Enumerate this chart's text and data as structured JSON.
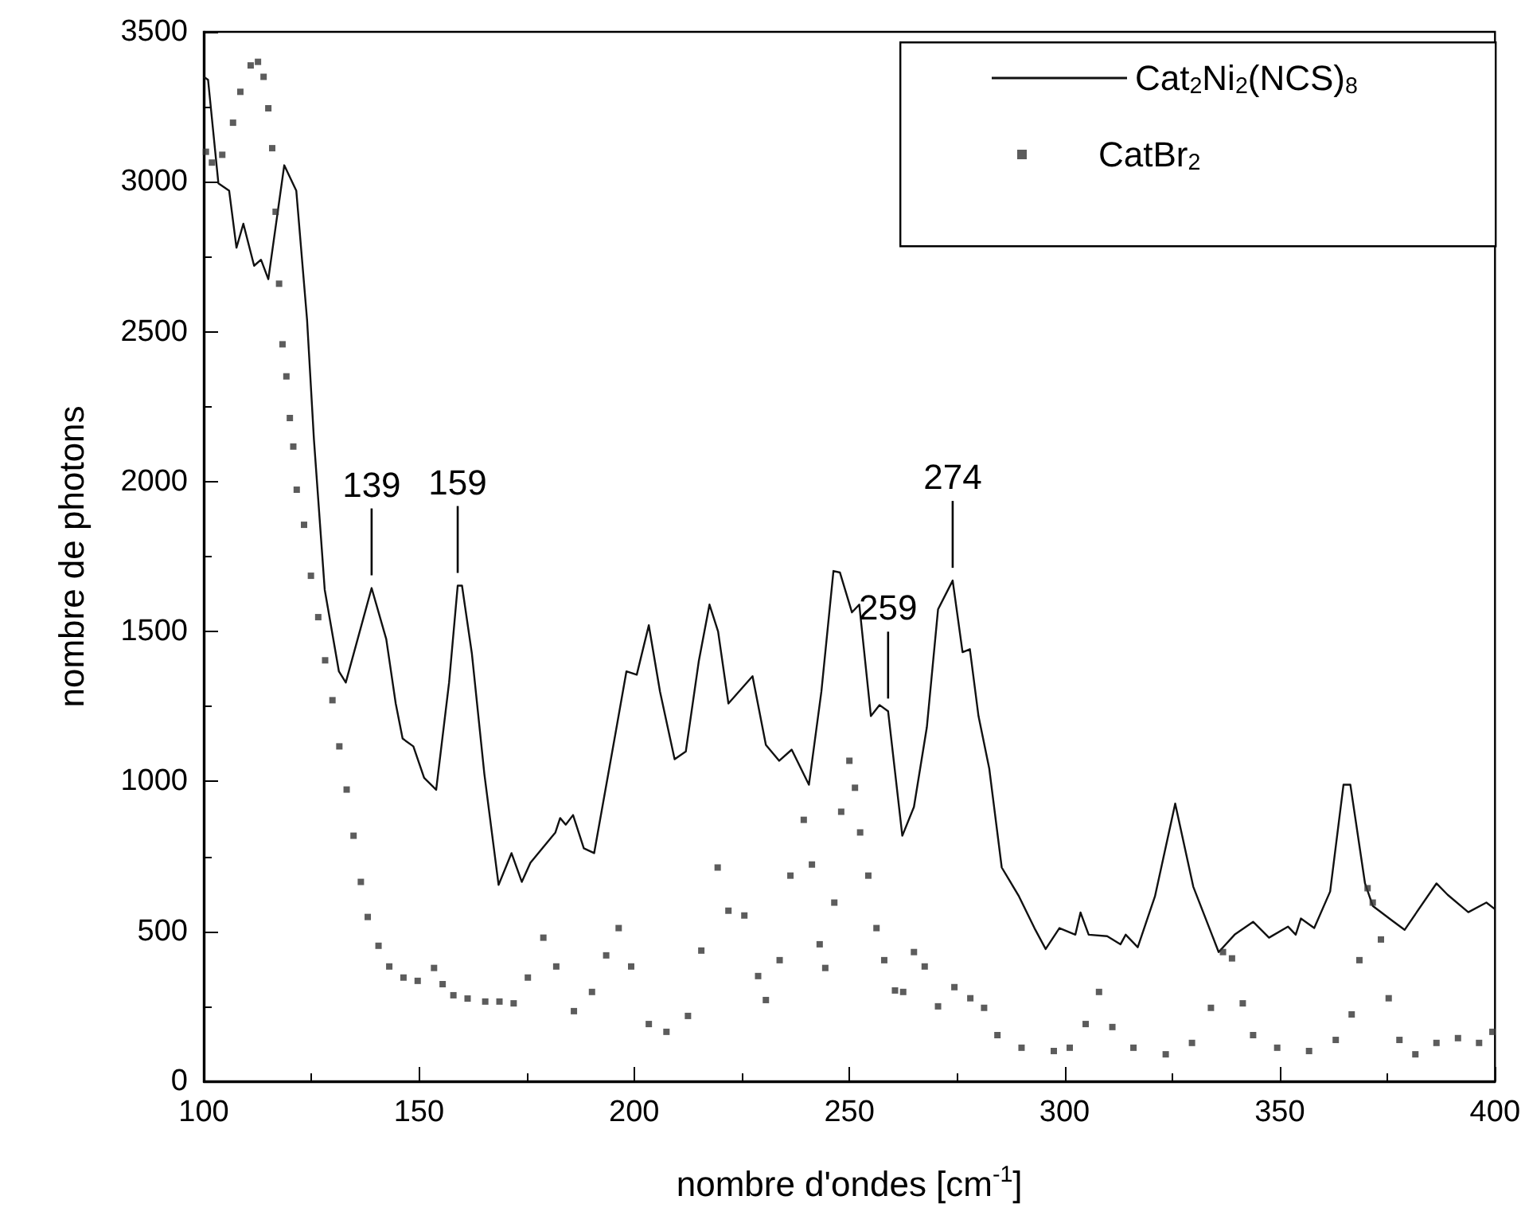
{
  "chart_data": {
    "type": "line",
    "xlabel": "nombre d'ondes [cm$^{-1}$]",
    "ylabel": "nombre de photons",
    "xlim": [
      100,
      400
    ],
    "xticks": [
      100,
      150,
      200,
      250,
      300,
      350,
      400
    ],
    "ylim": [
      0,
      3500
    ],
    "yticks": [
      0,
      500,
      1000,
      1500,
      2000,
      2500,
      3000,
      3500
    ],
    "grid": false,
    "legend": "top right",
    "annotations": [
      {
        "text": "139",
        "x": 139,
        "y": 1645
      },
      {
        "text": "159",
        "x": 159,
        "y": 1653
      },
      {
        "text": "259",
        "x": 259,
        "y": 1234
      },
      {
        "text": "274",
        "x": 274,
        "y": 1670
      }
    ],
    "series": [
      {
        "name": "Cat$_{2}$Ni$_{2}$(NCS)$_{8}$",
        "color": "#111111",
        "marker": "none",
        "line_style": "solid",
        "x": [
          100,
          101,
          103.4,
          105.9,
          107.6,
          109.2,
          111.7,
          113.3,
          115,
          118.7,
          121.5,
          124,
          125.6,
          128.1,
          131.4,
          133,
          139,
          142.4,
          144.6,
          146.2,
          148.7,
          151.2,
          154,
          157,
          159,
          160,
          162.3,
          165.2,
          168.5,
          171.5,
          173.9,
          175.9,
          181.7,
          182.8,
          184.1,
          185.8,
          188.3,
          190.7,
          195.7,
          198.2,
          200.6,
          203.4,
          206,
          209.4,
          212,
          215,
          217.5,
          219.5,
          221.9,
          227.5,
          230.6,
          233.7,
          236.6,
          240.6,
          243.5,
          246.3,
          247.8,
          250.6,
          252.3,
          255,
          257,
          259,
          262.3,
          265,
          268,
          270.6,
          274,
          276.3,
          278,
          280,
          282.5,
          285.4,
          289.4,
          293,
          295.6,
          298.8,
          302.5,
          303.7,
          305.6,
          309.9,
          313,
          314.2,
          317,
          321,
          325.7,
          329.9,
          335.8,
          339.5,
          343.8,
          347.5,
          351.9,
          353.7,
          354.9,
          358,
          361.7,
          364.8,
          366.4,
          369.8,
          371.6,
          376,
          379,
          386.4,
          389,
          393.8,
          398,
          400
        ],
        "values": [
          3350,
          3340,
          2995,
          2970,
          2780,
          2860,
          2720,
          2740,
          2675,
          3055,
          2970,
          2540,
          2140,
          1640,
          1367,
          1330,
          1645,
          1475,
          1260,
          1143,
          1117,
          1012,
          972,
          1330,
          1653,
          1653,
          1426,
          1024,
          655,
          761,
          665,
          729,
          830,
          878,
          856,
          888,
          777,
          761,
          1164,
          1367,
          1356,
          1521,
          1300,
          1074,
          1100,
          1400,
          1590,
          1500,
          1260,
          1351,
          1122,
          1069,
          1106,
          989,
          1300,
          1702,
          1697,
          1564,
          1590,
          1218,
          1255,
          1234,
          819,
          915,
          1181,
          1574,
          1670,
          1431,
          1441,
          1218,
          1043,
          713,
          617,
          511,
          441,
          511,
          489,
          563,
          489,
          484,
          457,
          489,
          447,
          617,
          926,
          649,
          431,
          489,
          532,
          479,
          516,
          489,
          543,
          511,
          633,
          989,
          989,
          660,
          585,
          537,
          505,
          660,
          622,
          564,
          596,
          574
        ]
      },
      {
        "name": "CatBr$_{2}$",
        "type": "scatter",
        "color": "#333333",
        "marker": "square",
        "x": [
          100.5,
          101.9,
          104.3,
          106.8,
          108.5,
          110.9,
          112.6,
          113.9,
          115,
          115.9,
          116.7,
          117.5,
          118.3,
          119.2,
          120,
          120.8,
          121.6,
          123.3,
          124.9,
          126.6,
          128.2,
          129.9,
          131.5,
          133.2,
          134.8,
          136.5,
          138.1,
          140.6,
          143.1,
          146.4,
          149.7,
          153.5,
          155.5,
          158,
          161.3,
          165.4,
          168.7,
          172,
          175.3,
          178.9,
          181.9,
          186,
          190.2,
          193.5,
          196.4,
          199.3,
          203.4,
          207.5,
          212.5,
          215.6,
          219.4,
          221.9,
          225.6,
          228.8,
          230.6,
          233.8,
          236.3,
          239.4,
          241.3,
          243.1,
          244.4,
          246.5,
          248.1,
          250,
          251.3,
          252.5,
          254.4,
          256.3,
          258.1,
          260.6,
          262.5,
          265,
          267.5,
          270.6,
          274.4,
          278.1,
          281.3,
          284.4,
          290,
          297.5,
          301.2,
          304.9,
          308,
          311.1,
          316,
          323.5,
          329.6,
          334,
          336.8,
          338.9,
          341.4,
          343.8,
          349.4,
          356.8,
          363,
          366.7,
          368.5,
          370.4,
          371.6,
          373.5,
          375.3,
          377.8,
          381.5,
          386.4,
          391.4,
          396.3,
          399.4
        ],
        "values": [
          3100,
          3064,
          3090,
          3197,
          3300,
          3388,
          3400,
          3350,
          3245,
          3112,
          2900,
          2660,
          2458,
          2351,
          2212,
          2117,
          1973,
          1856,
          1686,
          1548,
          1404,
          1271,
          1117,
          973,
          819,
          665,
          548,
          452,
          383,
          346,
          335,
          378,
          324,
          287,
          276,
          266,
          266,
          260,
          346,
          479,
          383,
          234,
          298,
          420,
          511,
          383,
          191,
          165,
          218,
          436,
          713,
          569,
          553,
          351,
          271,
          404,
          686,
          872,
          723,
          457,
          378,
          596,
          899,
          1069,
          979,
          830,
          686,
          511,
          404,
          303,
          298,
          431,
          383,
          250,
          314,
          277,
          245,
          154,
          112,
          101,
          112,
          191,
          298,
          181,
          112,
          90,
          128,
          245,
          431,
          410,
          260,
          154,
          112,
          101,
          138,
          223,
          404,
          644,
          596,
          473,
          277,
          138,
          90,
          128,
          144,
          128,
          165
        ]
      }
    ]
  }
}
